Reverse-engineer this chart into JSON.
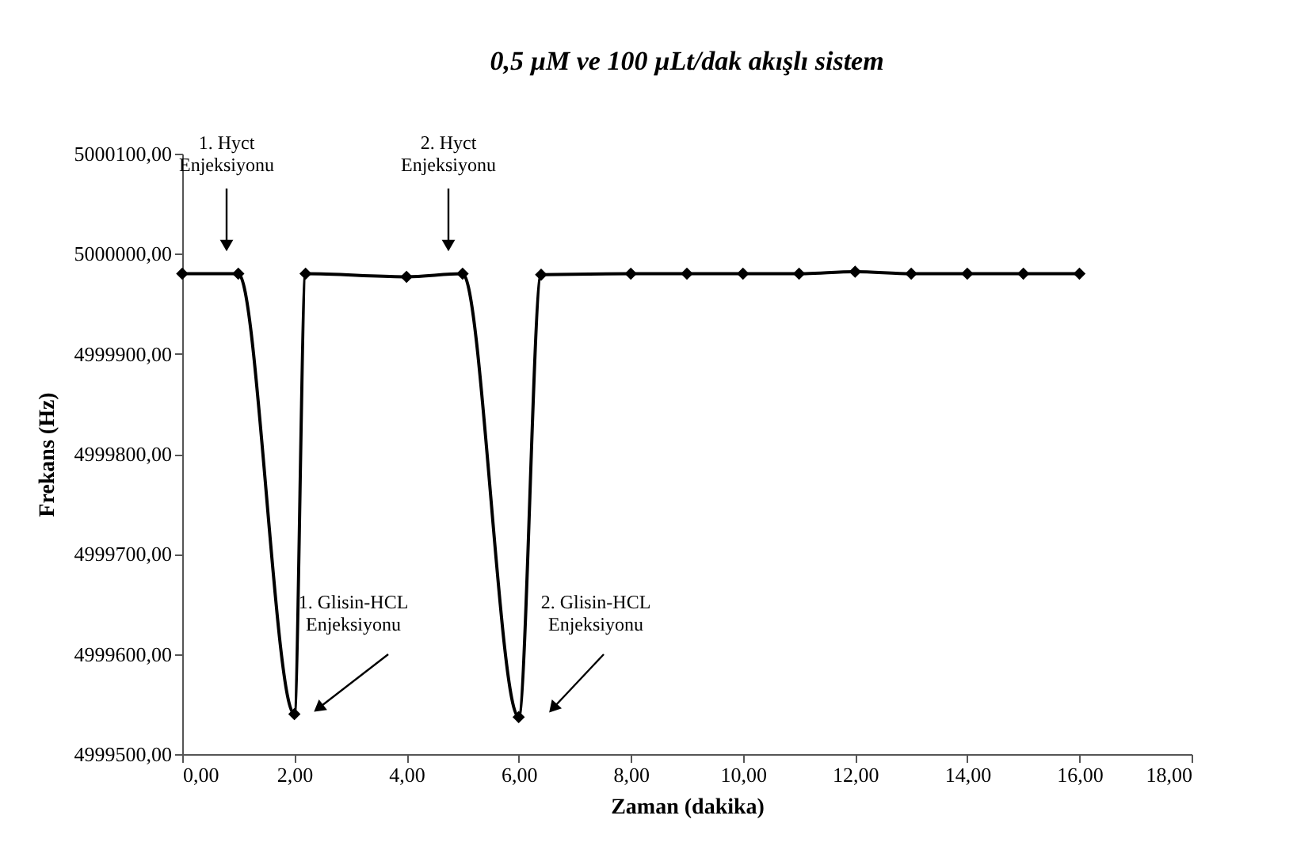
{
  "chart_data": {
    "type": "line",
    "title": "0,5 µM ve 100 µLt/dak akışlı sistem",
    "xlabel": "Zaman (dakika)",
    "ylabel": "Frekans (Hz)",
    "x": [
      0,
      1,
      2,
      2.2,
      4,
      5,
      6,
      6.4,
      8,
      9,
      10,
      11,
      12,
      13,
      14,
      15,
      16
    ],
    "series": [
      {
        "color": "#000000",
        "values": [
          4999980,
          4999980,
          4999540,
          4999980,
          4999977,
          4999980,
          4999537,
          4999979,
          4999980,
          4999980,
          4999980,
          4999980,
          4999982,
          4999980,
          4999980,
          4999980,
          4999980
        ]
      }
    ],
    "xlim": [
      0,
      18
    ],
    "ylim": [
      4999500,
      5000100
    ],
    "xticks": [
      {
        "value": 0,
        "label": "0,00"
      },
      {
        "value": 2,
        "label": "2,00"
      },
      {
        "value": 4,
        "label": "4,00"
      },
      {
        "value": 6,
        "label": "6,00"
      },
      {
        "value": 8,
        "label": "8,00"
      },
      {
        "value": 10,
        "label": "10,00"
      },
      {
        "value": 12,
        "label": "12,00"
      },
      {
        "value": 14,
        "label": "14,00"
      },
      {
        "value": 16,
        "label": "16,00"
      },
      {
        "value": 18,
        "label": "18,00"
      }
    ],
    "yticks": [
      {
        "value": 4999500,
        "label": "4999500,00"
      },
      {
        "value": 4999600,
        "label": "4999600,00"
      },
      {
        "value": 4999700,
        "label": "4999700,00"
      },
      {
        "value": 4999800,
        "label": "4999800,00"
      },
      {
        "value": 4999900,
        "label": "4999900,00"
      },
      {
        "value": 5000000,
        "label": "5000000,00"
      },
      {
        "value": 5000100,
        "label": "5000100,00"
      }
    ],
    "annotations": [
      "1. Hyct\nEnjeksiyonu",
      "2. Hyct\nEnjeksiyonu",
      "1. Glisin-HCL\nEnjeksiyonu",
      "2. Glisin-HCL\nEnjeksiyonu"
    ],
    "marker": "diamond",
    "line_style": "solid",
    "grid": false
  }
}
